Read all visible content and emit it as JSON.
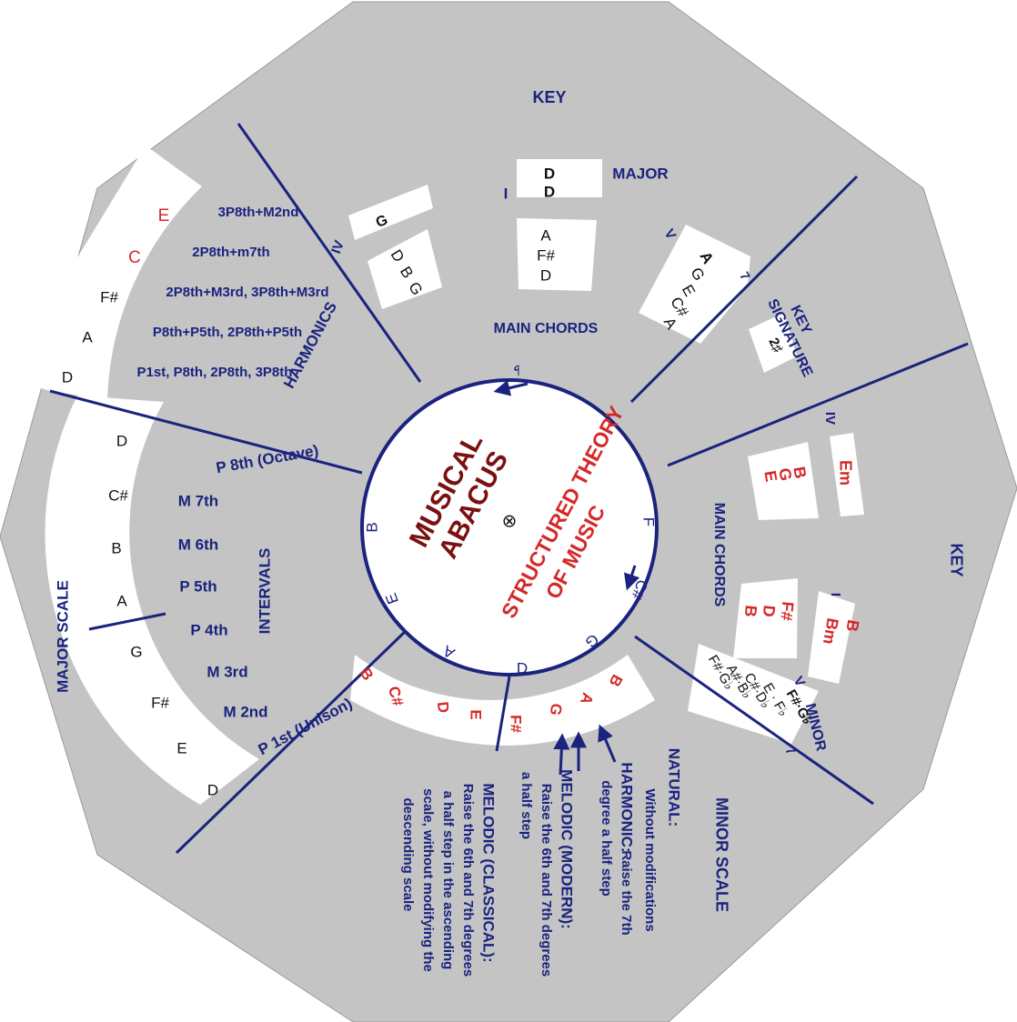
{
  "colors": {
    "background": "#c4c4c4",
    "panel": "#ffffff",
    "navy": "#1a237e",
    "red": "#d62828",
    "maroon": "#7a1010",
    "black": "#111111"
  },
  "labels": {
    "key_top": "KEY",
    "key_right": "KEY",
    "major": "MAJOR",
    "minor": "MINOR",
    "main_chords_top": "MAIN CHORDS",
    "main_chords_right": "MAIN CHORDS",
    "key_sig_1": "KEY",
    "key_sig_2": "SIGNATURE",
    "harmonics": "HARMONICS",
    "intervals": "INTERVALS",
    "major_scale": "MAJOR SCALE",
    "minor_scale": "MINOR SCALE"
  },
  "center": {
    "title_1": "MUSICAL",
    "title_2": "ABACUS",
    "subtitle_1": "STRUCTURED THEORY",
    "subtitle_2": "OF MUSIC",
    "center_mark": "⊗",
    "flat_arrow": "♭",
    "ring_notes": [
      "B",
      "E",
      "A",
      "D",
      "G",
      "C#",
      "F"
    ]
  },
  "major_key": {
    "tonic_top": "D",
    "tonic_bottom": "D",
    "degree_I": "I",
    "tonic_chord": [
      "A",
      "F#",
      "D"
    ],
    "degree_IV": "IV",
    "iv_root": "G",
    "iv_chord": [
      "D",
      "B",
      "G"
    ],
    "degree_V": "V",
    "v_chord": [
      "A",
      "G",
      "E",
      "C#",
      "A"
    ],
    "seven": "7",
    "signature": "2♯"
  },
  "minor_key": {
    "degree_IV": "IV",
    "iv_root": "Em",
    "iv_chord": [
      "B",
      "G",
      "E"
    ],
    "degree_I": "I",
    "i_root": "B",
    "i_root_2": "Bm",
    "i_chord": [
      "F#",
      "D",
      "B"
    ],
    "degree_V": "V",
    "v_root": "F#·G♭",
    "v_chord": [
      "E · F♭",
      "C#·D♭",
      "A#·B♭",
      "F#·G♭"
    ],
    "seven": "7"
  },
  "harmonics": {
    "notes": [
      "E",
      "C",
      "F#",
      "A",
      "D"
    ],
    "intervals": [
      "3P8th+M2nd",
      "2P8th+m7th",
      "2P8th+M3rd, 3P8th+M3rd",
      "P8th+P5th, 2P8th+P5th",
      "P1st, P8th, 2P8th, 3P8th"
    ]
  },
  "intervals": {
    "notes_upper": [
      "D",
      "C#",
      "B",
      "A"
    ],
    "notes_lower": [
      "G",
      "F#",
      "E",
      "D"
    ],
    "names": [
      "P 8th (Octave)",
      "M 7th",
      "M 6th",
      "P 5th",
      "P 4th",
      "M 3rd",
      "M 2nd",
      "P 1st (Unison)"
    ]
  },
  "minor_scale": {
    "notes_left": [
      "B",
      "C#",
      "D",
      "E"
    ],
    "notes_right": [
      "F#",
      "G",
      "A",
      "B"
    ],
    "natural_title": "NATURAL:",
    "natural_text": "Without modifications",
    "harmonic_title": "HARMONIC:",
    "harmonic_text_1": "Raise the 7th",
    "harmonic_text_2": "degree a half step",
    "modern_title": "MELODIC (MODERN):",
    "modern_text_1": "Raise the 6th and 7th degrees",
    "modern_text_2": "a half step",
    "classical_title": "MELODIC (CLASSICAL):",
    "classical_text_1": "Raise the 6th and 7th degrees",
    "classical_text_2": "a half step in the ascending",
    "classical_text_3": "scale, without modifying the",
    "classical_text_4": "descending scale"
  }
}
